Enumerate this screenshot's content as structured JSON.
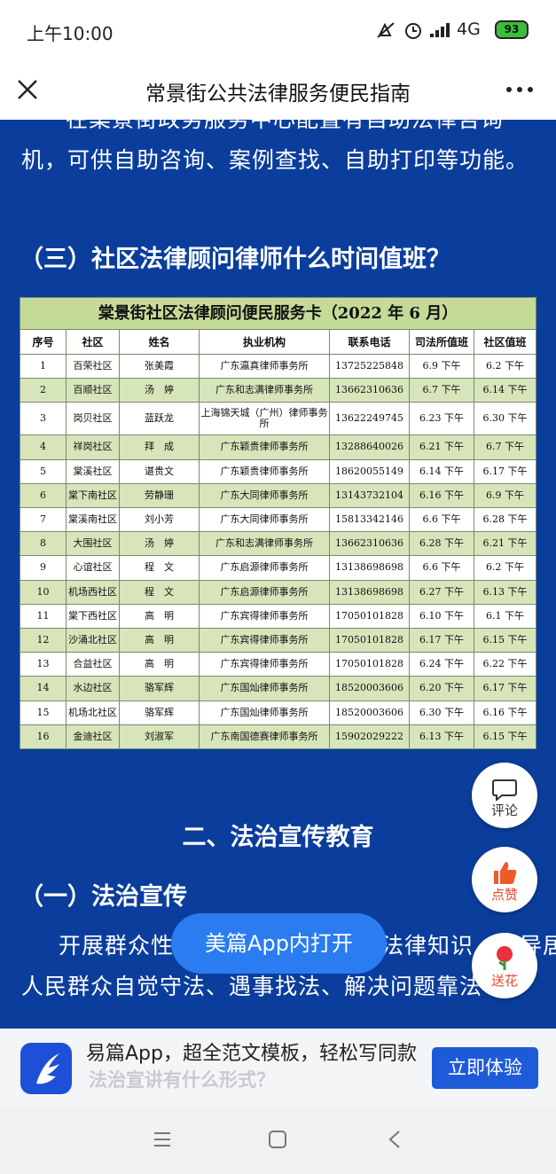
{
  "status_bar": {
    "time": "上午10:00",
    "network": "4G",
    "battery": "93"
  },
  "header": {
    "title": "常景街公共法律服务便民指南"
  },
  "article": {
    "intro_lines": [
      "在棠景街政务服务中心配置有自助法律咨询",
      "机，可供自助咨询、案例查找、自助打印等功能。"
    ],
    "heading_3": "（三）社区法律顾问律师什么时间值班？",
    "table": {
      "title": "棠景街社区法律顾问便民服务卡（2022 年 6 月）",
      "columns": [
        "序号",
        "社区",
        "姓名",
        "执业机构",
        "联系电话",
        "司法所值班",
        "社区值班"
      ],
      "rows": [
        [
          "1",
          "百荣社区",
          "张美霞",
          "广东瀛真律师事务所",
          "13725225848",
          "6.9 下午",
          "6.2 下午"
        ],
        [
          "2",
          "百顺社区",
          "汤　婷",
          "广东和志满律师事务所",
          "13662310636",
          "6.7 下午",
          "6.14 下午"
        ],
        [
          "3",
          "岗贝社区",
          "蓝跃龙",
          "上海锦天城（广州）律师事务所",
          "13622249745",
          "6.23 下午",
          "6.30 下午"
        ],
        [
          "4",
          "祥岗社区",
          "拜　成",
          "广东颖贵律师事务所",
          "13288640026",
          "6.21 下午",
          "6.7 下午"
        ],
        [
          "5",
          "棠溪社区",
          "谌贵文",
          "广东颖贵律师事务所",
          "18620055149",
          "6.14 下午",
          "6.17 下午"
        ],
        [
          "6",
          "棠下南社区",
          "劳静珊",
          "广东大同律师事务所",
          "13143732104",
          "6.16 下午",
          "6.9 下午"
        ],
        [
          "7",
          "棠溪南社区",
          "刘小芳",
          "广东大同律师事务所",
          "15813342146",
          "6.6 下午",
          "6.28 下午"
        ],
        [
          "8",
          "大围社区",
          "汤　婷",
          "广东和志满律师事务所",
          "13662310636",
          "6.28 下午",
          "6.21 下午"
        ],
        [
          "9",
          "心谊社区",
          "程　文",
          "广东启源律师事务所",
          "13138698698",
          "6.6 下午",
          "6.2 下午"
        ],
        [
          "10",
          "机场西社区",
          "程　文",
          "广东启源律师事务所",
          "13138698698",
          "6.27 下午",
          "6.13 下午"
        ],
        [
          "11",
          "棠下西社区",
          "高　明",
          "广东宾得律师事务所",
          "17050101828",
          "6.10 下午",
          "6.1 下午"
        ],
        [
          "12",
          "沙涌北社区",
          "高　明",
          "广东宾得律师事务所",
          "17050101828",
          "6.17 下午",
          "6.15 下午"
        ],
        [
          "13",
          "合益社区",
          "高　明",
          "广东宾得律师事务所",
          "17050101828",
          "6.24 下午",
          "6.22 下午"
        ],
        [
          "14",
          "水边社区",
          "骆军辉",
          "广东国灿律师事务所",
          "18520003606",
          "6.20 下午",
          "6.17 下午"
        ],
        [
          "15",
          "机场北社区",
          "骆军辉",
          "广东国灿律师事务所",
          "18520003606",
          "6.30 下午",
          "6.16 下午"
        ],
        [
          "16",
          "金迪社区",
          "刘淑军",
          "广东南国德赛律师事务所",
          "15902029222",
          "6.13 下午",
          "6.15 下午"
        ]
      ]
    },
    "section_2": "二、法治宣传教育",
    "heading_2_1": "（一）法治宣传",
    "body_lines": [
      "开展群众性普法宣传活动，普及法律知识，引导居",
      "人民群众自觉守法、遇事找法、解决问题靠法"
    ],
    "hidden_heading": "法治宣讲有什么形式？"
  },
  "actions": {
    "comment": "评论",
    "like": "点赞",
    "flower": "送花",
    "open_app": "美篇App内打开"
  },
  "banner": {
    "text": "易篇App，超全范文模板，轻松写同款",
    "button": "立即体验"
  }
}
